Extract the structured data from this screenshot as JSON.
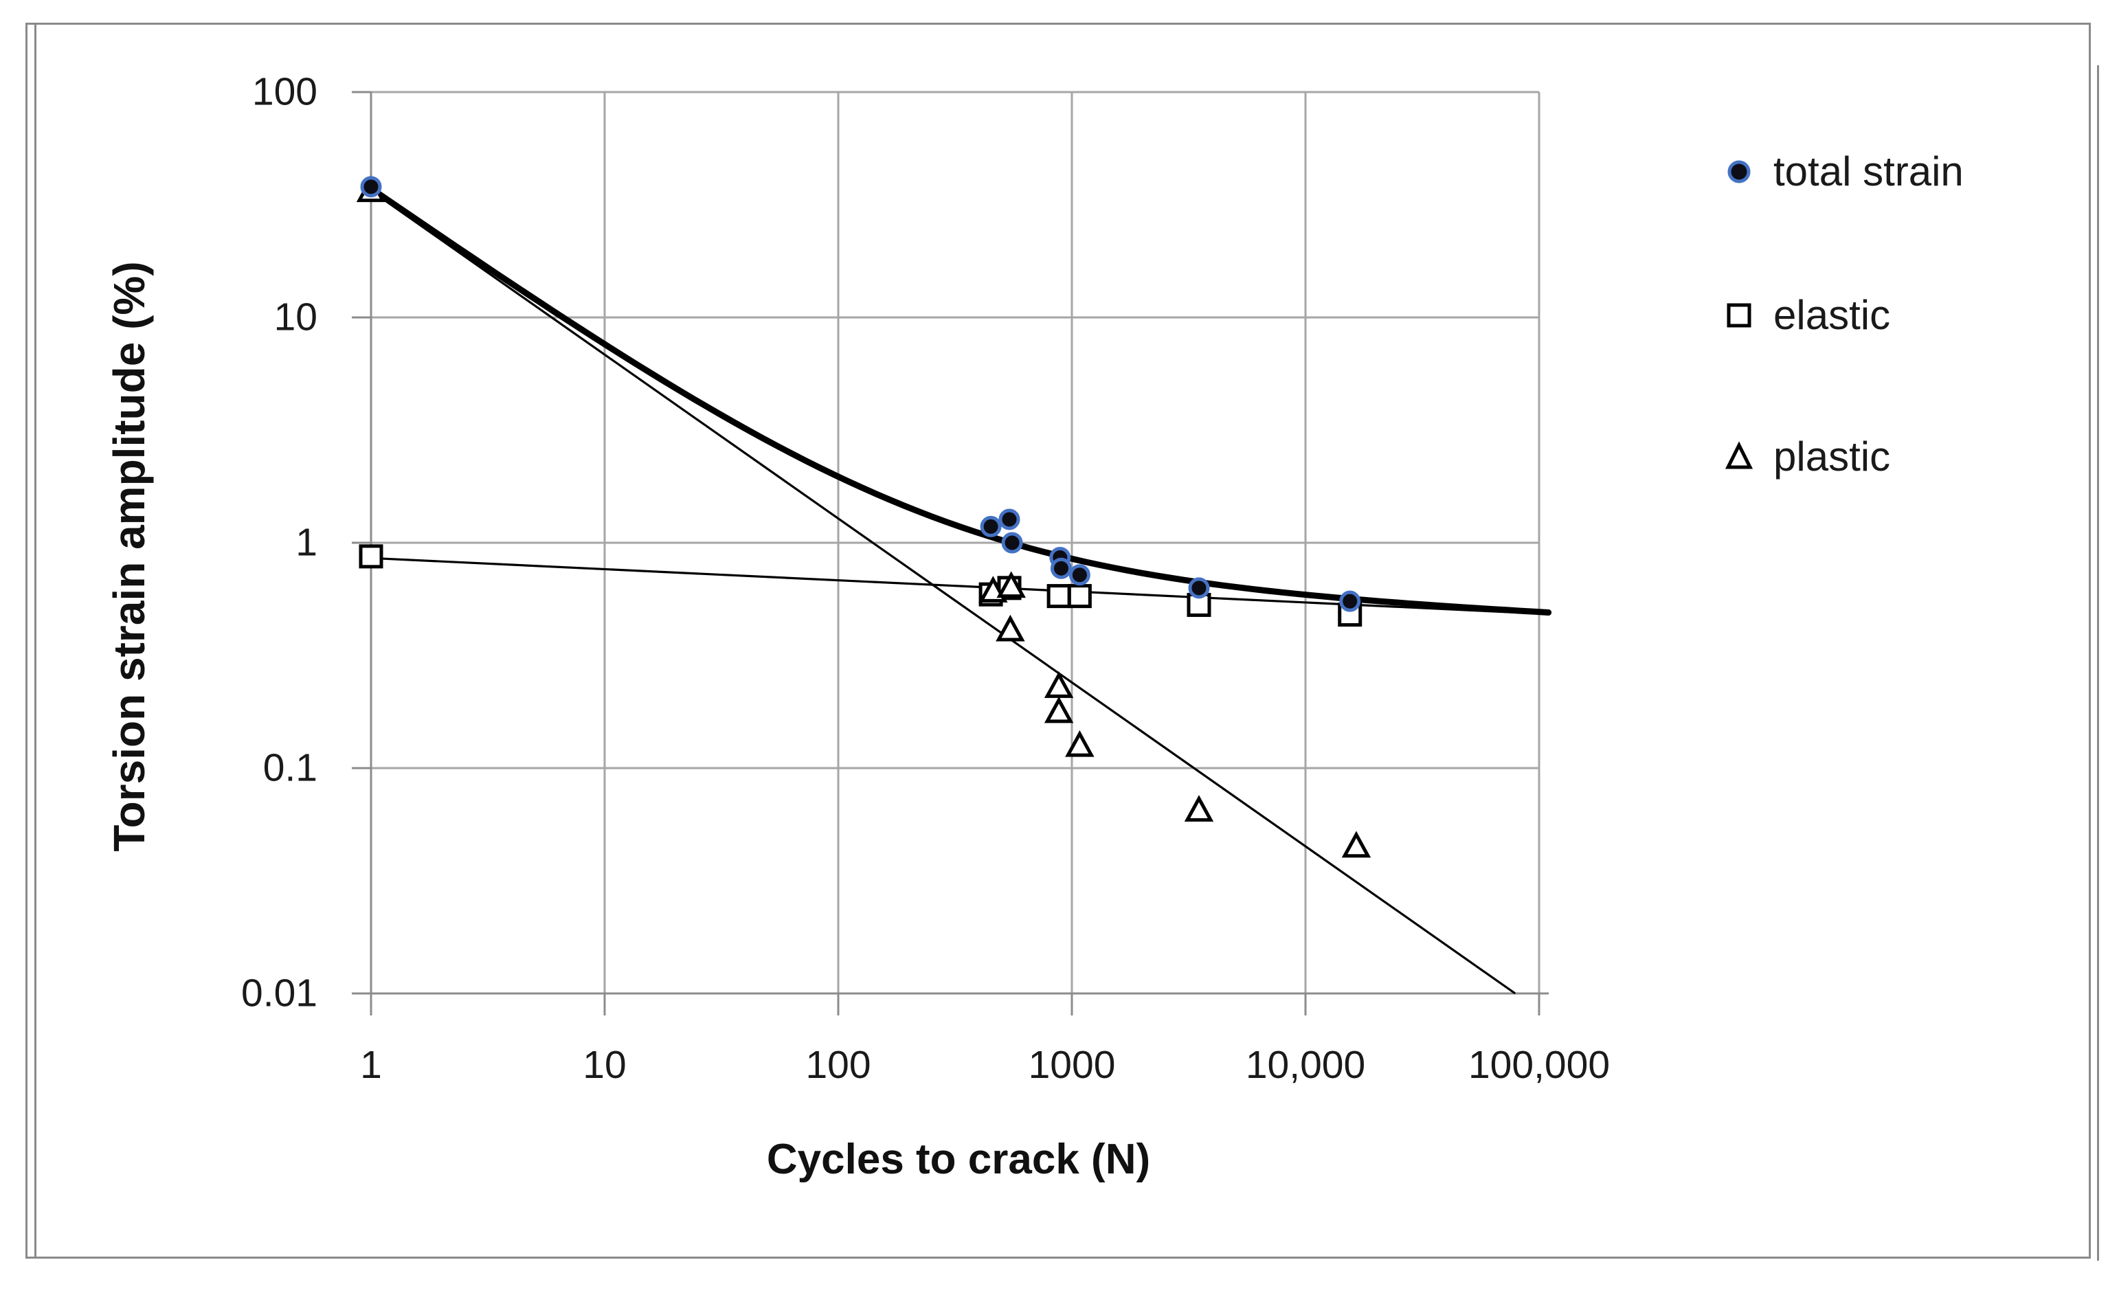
{
  "figure": {
    "y_axis_title": "Torsion strain amplitude (%)",
    "x_axis_title": "Cycles to crack (N)",
    "y_tick_labels": [
      "100",
      "10",
      "1",
      "0.1",
      "0.01"
    ],
    "x_tick_labels": [
      "1",
      "10",
      "100",
      "1000",
      "10,000",
      "100,000"
    ]
  },
  "legend": [
    {
      "label": "total strain",
      "marker": "filled-circle-icon"
    },
    {
      "label": "elastic",
      "marker": "open-square-icon"
    },
    {
      "label": "plastic",
      "marker": "open-triangle-icon"
    }
  ],
  "colors": {
    "marker_ring_blue": "#4472c4",
    "marker_core": "#0d0d16",
    "line_black": "#000000",
    "grid_gray": "#a6a6a6",
    "axis_gray": "#8c8c8c",
    "frame_gray": "#8a8a8a",
    "text": "#1a1a1a"
  },
  "chart_data": {
    "type": "scatter",
    "x_scale": "log",
    "y_scale": "log",
    "xlim": [
      1,
      100000
    ],
    "ylim": [
      0.01,
      100
    ],
    "xlabel": "Cycles to crack (N)",
    "ylabel": "Torsion strain amplitude (%)",
    "grid": "decade gridlines on, gray",
    "legend_position": "right",
    "x_ticks": [
      1,
      10,
      100,
      1000,
      10000,
      100000
    ],
    "y_ticks": [
      100,
      10,
      1,
      0.1,
      0.01
    ],
    "series": [
      {
        "name": "total strain",
        "marker": "filled-circle",
        "points": [
          [
            1,
            38
          ],
          [
            450,
            1.18
          ],
          [
            540,
            1.27
          ],
          [
            555,
            1.0
          ],
          [
            890,
            0.86
          ],
          [
            900,
            0.77
          ],
          [
            1080,
            0.72
          ],
          [
            3500,
            0.63
          ],
          [
            15500,
            0.55
          ]
        ]
      },
      {
        "name": "elastic",
        "marker": "open-square",
        "points": [
          [
            1,
            0.87
          ],
          [
            450,
            0.59
          ],
          [
            540,
            0.63
          ],
          [
            880,
            0.58
          ],
          [
            1080,
            0.58
          ],
          [
            3500,
            0.53
          ],
          [
            15500,
            0.48
          ]
        ]
      },
      {
        "name": "plastic",
        "marker": "open-triangle",
        "points": [
          [
            1,
            36.5
          ],
          [
            460,
            0.61
          ],
          [
            550,
            0.64
          ],
          [
            545,
            0.41
          ],
          [
            880,
            0.23
          ],
          [
            880,
            0.178
          ],
          [
            1080,
            0.126
          ],
          [
            3500,
            0.065
          ],
          [
            16500,
            0.045
          ]
        ]
      }
    ],
    "fit_lines": [
      {
        "name": "plastic-fit",
        "style": "thin straight line (log-log)",
        "power_law": {
          "coef": 36.5,
          "exponent": -0.727
        },
        "endpoints": [
          [
            1,
            36.5
          ],
          [
            79000,
            0.01
          ]
        ]
      },
      {
        "name": "elastic-fit",
        "style": "thin straight line (log-log)",
        "power_law": {
          "coef": 0.855,
          "exponent": -0.0493
        },
        "endpoints": [
          [
            1,
            0.855
          ],
          [
            100000,
            0.485
          ]
        ]
      },
      {
        "name": "total-fit",
        "style": "thick curve = elastic-fit + plastic-fit",
        "sample_points": [
          [
            1,
            37.4
          ],
          [
            10,
            7.65
          ],
          [
            100,
            1.97
          ],
          [
            1000,
            0.855
          ],
          [
            10000,
            0.595
          ],
          [
            100000,
            0.5
          ]
        ]
      }
    ]
  }
}
